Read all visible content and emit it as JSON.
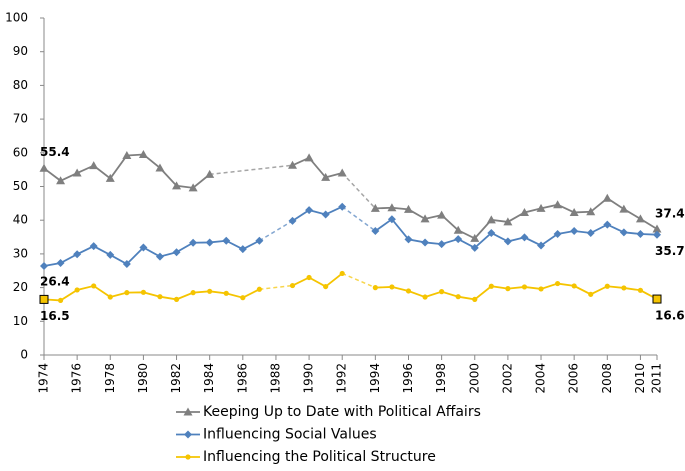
{
  "chart_data": {
    "type": "line",
    "x": [
      1974,
      1975,
      1976,
      1977,
      1978,
      1979,
      1980,
      1981,
      1982,
      1983,
      1984,
      1985,
      1986,
      1987,
      1988,
      1989,
      1990,
      1991,
      1992,
      1993,
      1994,
      1995,
      1996,
      1997,
      1998,
      1999,
      2000,
      2001,
      2002,
      2003,
      2004,
      2005,
      2006,
      2007,
      2008,
      2009,
      2010,
      2011
    ],
    "xlim": [
      1974,
      2011
    ],
    "xticks": [
      1974,
      1976,
      1978,
      1980,
      1982,
      1984,
      1986,
      1988,
      1990,
      1992,
      1994,
      1996,
      1998,
      2000,
      2002,
      2004,
      2006,
      2008,
      2010,
      2011
    ],
    "ylim": [
      0,
      100
    ],
    "yticks": [
      0,
      10,
      20,
      30,
      40,
      50,
      60,
      70,
      80,
      90,
      100
    ],
    "series": [
      {
        "name": "Keeping Up to Date with Political Affairs",
        "color": "#7f7f7f",
        "marker": "triangle",
        "values": [
          55.4,
          51.7,
          54,
          56.2,
          52.4,
          59.2,
          59.5,
          55.5,
          50.2,
          49.6,
          53.6,
          null,
          null,
          null,
          null,
          56.3,
          58.5,
          52.7,
          54,
          null,
          43.5,
          43.7,
          43.2,
          40.4,
          41.5,
          37,
          34.6,
          40.1,
          39.5,
          42.3,
          43.5,
          44.6,
          42.3,
          42.5,
          46.5,
          43.3,
          40.4,
          37.4
        ]
      },
      {
        "name": "Influencing Social Values",
        "color": "#4f81bd",
        "marker": "diamond",
        "values": [
          26.4,
          27.3,
          29.9,
          32.3,
          29.7,
          27,
          31.9,
          29.2,
          30.5,
          33.3,
          33.4,
          33.9,
          31.4,
          33.9,
          null,
          39.8,
          43,
          41.7,
          44,
          null,
          36.8,
          40.3,
          34.3,
          33.4,
          32.9,
          34.4,
          31.8,
          36.2,
          33.7,
          34.9,
          32.5,
          35.9,
          36.8,
          36.2,
          38.7,
          36.4,
          35.9,
          35.7
        ]
      },
      {
        "name": "Influencing the Political Structure",
        "color": "#f5c400",
        "marker": "circle",
        "values": [
          16.5,
          16.2,
          19.3,
          20.5,
          17.2,
          18.5,
          18.6,
          17.3,
          16.5,
          18.5,
          18.9,
          18.3,
          17,
          19.5,
          null,
          20.6,
          23,
          20.3,
          24.2,
          null,
          20,
          20.2,
          19,
          17.2,
          18.8,
          17.3,
          16.5,
          20.4,
          19.7,
          20.2,
          19.6,
          21.2,
          20.5,
          18,
          20.4,
          19.9,
          19.2,
          16.6
        ]
      }
    ]
  }
}
